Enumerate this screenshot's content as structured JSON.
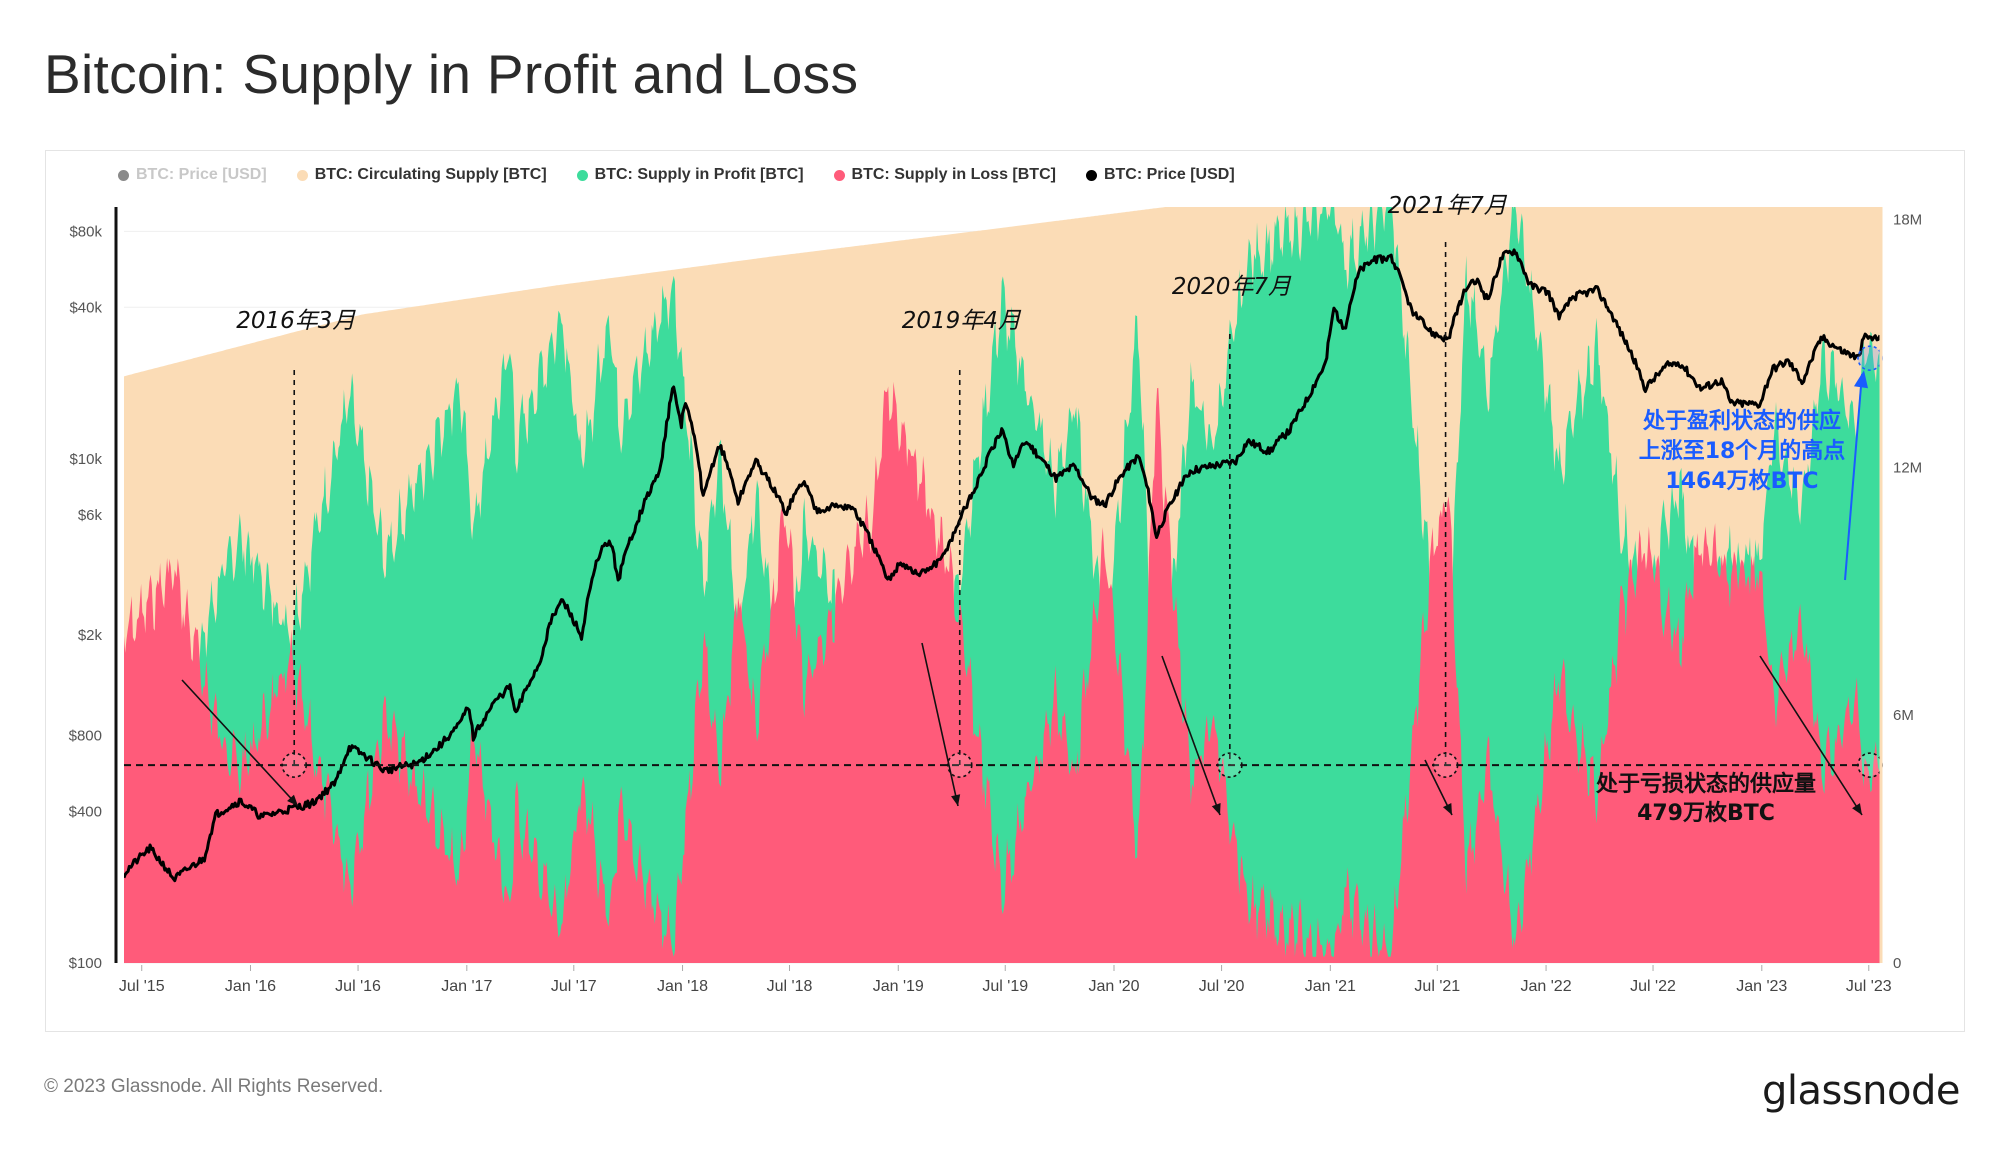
{
  "title": "Bitcoin: Supply in Profit and Loss",
  "footer": "© 2023 Glassnode. All Rights Reserved.",
  "brand": "glassnode",
  "colors": {
    "circulating": "#fbdcb6",
    "profit": "#3ddc9c",
    "loss": "#ff5b7a",
    "price": "#000000",
    "price_muted": "#8a8a8a",
    "annotation_blue": "#1a5cff"
  },
  "legend": [
    {
      "label": "BTC: Price [USD]",
      "color": "#8a8a8a",
      "muted": true
    },
    {
      "label": "BTC: Circulating Supply [BTC]",
      "color": "#fbdcb6",
      "muted": false
    },
    {
      "label": "BTC: Supply in Profit [BTC]",
      "color": "#3ddc9c",
      "muted": false
    },
    {
      "label": "BTC: Supply in Loss [BTC]",
      "color": "#ff5b7a",
      "muted": false
    },
    {
      "label": "BTC: Price [USD]",
      "color": "#000000",
      "muted": false
    }
  ],
  "chart_data": {
    "type": "area",
    "x_range": [
      "2015-06-01",
      "2023-07-20"
    ],
    "x_ticks": [
      "Jul '15",
      "Jan '16",
      "Jul '16",
      "Jan '17",
      "Jul '17",
      "Jan '18",
      "Jul '18",
      "Jan '19",
      "Jul '19",
      "Jan '20",
      "Jul '20",
      "Jan '21",
      "Jul '21",
      "Jan '22",
      "Jul '22",
      "Jan '23",
      "Jul '23"
    ],
    "y_left": {
      "scale": "log",
      "range": [
        100,
        100000
      ],
      "ticks": [
        100,
        400,
        800,
        2000,
        6000,
        10000,
        40000,
        80000
      ],
      "tick_labels": [
        "$100",
        "$400",
        "$800",
        "$2k",
        "$6k",
        "$10k",
        "$40k",
        "$80k"
      ]
    },
    "y_right": {
      "scale": "linear",
      "range": [
        0,
        18300000
      ],
      "ticks": [
        0,
        6000000,
        12000000,
        18000000
      ],
      "tick_labels": [
        "0",
        "6M",
        "12M",
        "18M"
      ]
    },
    "price": [
      [
        "2015-06-01",
        225
      ],
      [
        "2015-07-15",
        285
      ],
      [
        "2015-08-25",
        215
      ],
      [
        "2015-10-15",
        260
      ],
      [
        "2015-11-05",
        390
      ],
      [
        "2015-12-15",
        440
      ],
      [
        "2016-01-20",
        380
      ],
      [
        "2016-03-10",
        410
      ],
      [
        "2016-04-15",
        430
      ],
      [
        "2016-05-25",
        520
      ],
      [
        "2016-06-17",
        720
      ],
      [
        "2016-07-15",
        660
      ],
      [
        "2016-08-15",
        580
      ],
      [
        "2016-10-10",
        620
      ],
      [
        "2016-11-15",
        720
      ],
      [
        "2016-12-20",
        880
      ],
      [
        "2017-01-05",
        1050
      ],
      [
        "2017-01-12",
        780
      ],
      [
        "2017-02-20",
        1100
      ],
      [
        "2017-03-15",
        1250
      ],
      [
        "2017-03-25",
        960
      ],
      [
        "2017-05-05",
        1550
      ],
      [
        "2017-05-25",
        2300
      ],
      [
        "2017-06-12",
        2750
      ],
      [
        "2017-07-15",
        1950
      ],
      [
        "2017-08-15",
        4300
      ],
      [
        "2017-09-01",
        4750
      ],
      [
        "2017-09-15",
        3300
      ],
      [
        "2017-10-20",
        5900
      ],
      [
        "2017-11-25",
        9000
      ],
      [
        "2017-12-17",
        19200
      ],
      [
        "2017-12-30",
        13500
      ],
      [
        "2018-01-06",
        17000
      ],
      [
        "2018-02-06",
        6900
      ],
      [
        "2018-03-05",
        11400
      ],
      [
        "2018-04-06",
        6700
      ],
      [
        "2018-05-05",
        9800
      ],
      [
        "2018-06-25",
        6100
      ],
      [
        "2018-07-25",
        8200
      ],
      [
        "2018-08-15",
        6300
      ],
      [
        "2018-09-15",
        6500
      ],
      [
        "2018-10-15",
        6450
      ],
      [
        "2018-11-20",
        4500
      ],
      [
        "2018-12-15",
        3250
      ],
      [
        "2019-01-05",
        3900
      ],
      [
        "2019-02-05",
        3450
      ],
      [
        "2019-03-15",
        3950
      ],
      [
        "2019-04-05",
        5000
      ],
      [
        "2019-05-15",
        7900
      ],
      [
        "2019-06-26",
        12900
      ],
      [
        "2019-07-15",
        9500
      ],
      [
        "2019-08-05",
        11800
      ],
      [
        "2019-09-25",
        8400
      ],
      [
        "2019-10-26",
        9400
      ],
      [
        "2019-11-25",
        7000
      ],
      [
        "2019-12-17",
        6600
      ],
      [
        "2020-01-15",
        8700
      ],
      [
        "2020-02-12",
        10300
      ],
      [
        "2020-03-13",
        4900
      ],
      [
        "2020-04-10",
        6900
      ],
      [
        "2020-05-10",
        9000
      ],
      [
        "2020-06-15",
        9400
      ],
      [
        "2020-07-25",
        9800
      ],
      [
        "2020-08-15",
        11800
      ],
      [
        "2020-09-20",
        10700
      ],
      [
        "2020-10-25",
        13000
      ],
      [
        "2020-11-25",
        17500
      ],
      [
        "2020-12-25",
        24000
      ],
      [
        "2021-01-08",
        40000
      ],
      [
        "2021-01-25",
        32000
      ],
      [
        "2021-02-20",
        56000
      ],
      [
        "2021-03-13",
        61000
      ],
      [
        "2021-04-14",
        63500
      ],
      [
        "2021-05-20",
        38000
      ],
      [
        "2021-06-22",
        31700
      ],
      [
        "2021-07-20",
        29800
      ],
      [
        "2021-08-20",
        48000
      ],
      [
        "2021-09-07",
        51000
      ],
      [
        "2021-09-25",
        42000
      ],
      [
        "2021-10-20",
        64000
      ],
      [
        "2021-11-10",
        67500
      ],
      [
        "2021-12-05",
        49000
      ],
      [
        "2022-01-05",
        46000
      ],
      [
        "2022-01-24",
        36000
      ],
      [
        "2022-02-15",
        44000
      ],
      [
        "2022-03-28",
        47000
      ],
      [
        "2022-05-10",
        31000
      ],
      [
        "2022-06-18",
        19000
      ],
      [
        "2022-07-25",
        23500
      ],
      [
        "2022-08-15",
        24200
      ],
      [
        "2022-09-20",
        19000
      ],
      [
        "2022-10-25",
        20500
      ],
      [
        "2022-11-10",
        16700
      ],
      [
        "2022-12-30",
        16500
      ],
      [
        "2023-01-20",
        22800
      ],
      [
        "2023-02-15",
        24500
      ],
      [
        "2023-03-12",
        20200
      ],
      [
        "2023-04-13",
        30400
      ],
      [
        "2023-05-15",
        27000
      ],
      [
        "2023-06-15",
        25100
      ],
      [
        "2023-06-23",
        30500
      ],
      [
        "2023-07-20",
        30000
      ]
    ],
    "circulating_supply": [
      [
        "2015-06-01",
        14200000
      ],
      [
        "2016-07-09",
        15700000
      ],
      [
        "2017-06-01",
        16400000
      ],
      [
        "2018-06-01",
        17100000
      ],
      [
        "2019-06-01",
        17750000
      ],
      [
        "2020-05-11",
        18380000
      ],
      [
        "2021-06-01",
        18720000
      ],
      [
        "2022-06-01",
        19060000
      ],
      [
        "2023-07-20",
        19430000
      ]
    ],
    "supply_in_profit": [
      [
        "2015-06-01",
        6300000
      ],
      [
        "2015-08-25",
        5000000
      ],
      [
        "2015-11-05",
        9000000
      ],
      [
        "2015-12-15",
        10300000
      ],
      [
        "2016-03-10",
        8000000
      ],
      [
        "2016-06-17",
        13700000
      ],
      [
        "2016-08-15",
        9800000
      ],
      [
        "2016-12-20",
        14000000
      ],
      [
        "2017-01-12",
        10500000
      ],
      [
        "2017-03-15",
        15000000
      ],
      [
        "2017-03-25",
        12500000
      ],
      [
        "2017-06-12",
        15700000
      ],
      [
        "2017-07-15",
        12000000
      ],
      [
        "2017-09-01",
        15800000
      ],
      [
        "2017-09-15",
        13000000
      ],
      [
        "2017-12-17",
        16500000
      ],
      [
        "2018-02-06",
        9000000
      ],
      [
        "2018-03-05",
        12500000
      ],
      [
        "2018-04-06",
        8000000
      ],
      [
        "2018-05-05",
        11500000
      ],
      [
        "2018-06-25",
        6000000
      ],
      [
        "2018-07-25",
        10500000
      ],
      [
        "2018-11-20",
        6500000
      ],
      [
        "2018-12-15",
        3500000
      ],
      [
        "2019-02-05",
        5700000
      ],
      [
        "2019-04-05",
        8500000
      ],
      [
        "2019-06-26",
        16000000
      ],
      [
        "2019-09-25",
        11500000
      ],
      [
        "2019-10-26",
        13500000
      ],
      [
        "2019-12-17",
        8000000
      ],
      [
        "2020-02-12",
        15500000
      ],
      [
        "2020-03-13",
        4500000
      ],
      [
        "2020-05-10",
        14000000
      ],
      [
        "2020-06-15",
        12500000
      ],
      [
        "2020-08-15",
        17000000
      ],
      [
        "2020-11-25",
        18000000
      ],
      [
        "2021-01-08",
        18400000
      ],
      [
        "2021-01-25",
        17000000
      ],
      [
        "2021-04-14",
        18500000
      ],
      [
        "2021-05-20",
        13500000
      ],
      [
        "2021-06-22",
        9000000
      ],
      [
        "2021-07-20",
        7500000
      ],
      [
        "2021-08-20",
        16500000
      ],
      [
        "2021-09-25",
        14000000
      ],
      [
        "2021-11-10",
        18400000
      ],
      [
        "2022-01-24",
        12000000
      ],
      [
        "2022-03-28",
        15000000
      ],
      [
        "2022-05-10",
        10500000
      ],
      [
        "2022-06-18",
        9000000
      ],
      [
        "2022-08-15",
        11500000
      ],
      [
        "2022-09-20",
        9000000
      ],
      [
        "2022-11-10",
        9800000
      ],
      [
        "2022-12-30",
        9800000
      ],
      [
        "2023-01-20",
        13000000
      ],
      [
        "2023-03-12",
        11000000
      ],
      [
        "2023-04-13",
        14700000
      ],
      [
        "2023-06-15",
        13000000
      ],
      [
        "2023-06-23",
        15000000
      ],
      [
        "2023-07-20",
        14640000
      ]
    ],
    "annotations": {
      "date_labels": [
        {
          "date": "2016-03-15",
          "text": "2016年3月"
        },
        {
          "date": "2019-04-15",
          "text": "2019年4月"
        },
        {
          "date": "2020-07-15",
          "text": "2020年7月"
        },
        {
          "date": "2021-07-15",
          "text": "2021年7月"
        }
      ],
      "reference_level_supply": 4790000,
      "profit_note": [
        "处于盈利状态的供应",
        "上涨至18个月的高点",
        "1464万枚BTC"
      ],
      "loss_note": [
        "处于亏损状态的供应量",
        "479万枚BTC"
      ]
    }
  }
}
